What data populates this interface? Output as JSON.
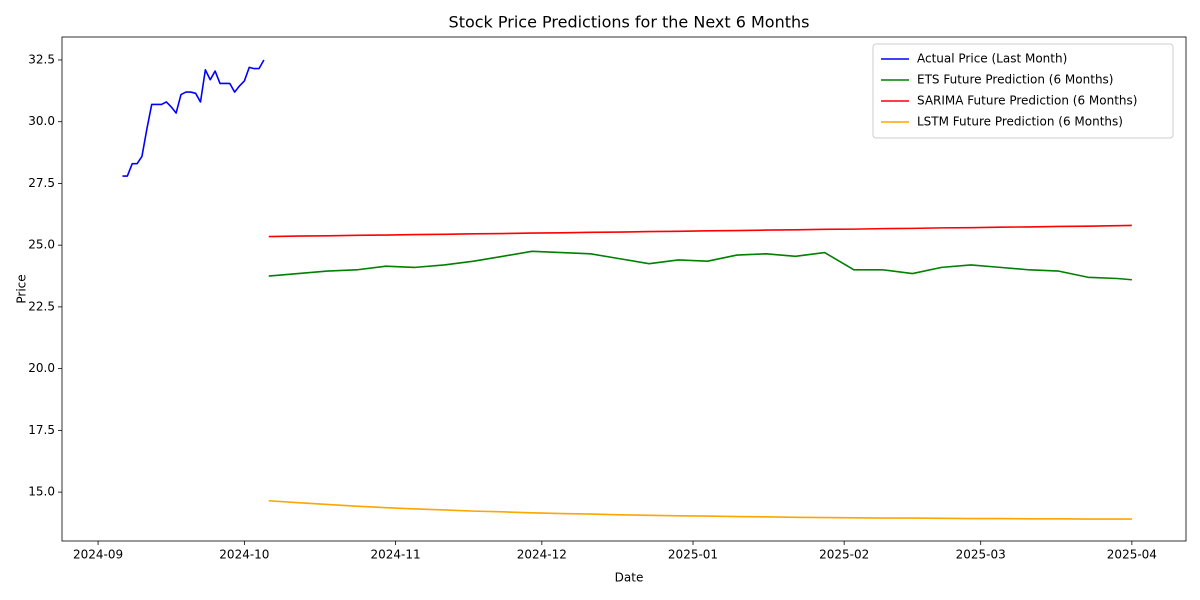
{
  "chart_data": {
    "type": "line",
    "title": "Stock Price Predictions for the Next 6 Months",
    "x_label": "Date",
    "y_label": "Price",
    "xlim": [
      19959.6,
      20190.1
    ],
    "ylim": [
      13.02,
      33.43
    ],
    "xticks": [
      {
        "value": 19967,
        "label": "2024-09"
      },
      {
        "value": 19997,
        "label": "2024-10"
      },
      {
        "value": 20028,
        "label": "2024-11"
      },
      {
        "value": 20058,
        "label": "2024-12"
      },
      {
        "value": 20089,
        "label": "2025-01"
      },
      {
        "value": 20120,
        "label": "2025-02"
      },
      {
        "value": 20148,
        "label": "2025-03"
      },
      {
        "value": 20179,
        "label": "2025-04"
      }
    ],
    "yticks": [
      {
        "value": 15,
        "label": "15.0"
      },
      17.5,
      {
        "value": 20,
        "label": "20.0"
      },
      22.5,
      {
        "value": 25,
        "label": "25.0"
      },
      27.5,
      {
        "value": 30,
        "label": "30.0"
      },
      32.5
    ],
    "grid": false,
    "legend": "upper right",
    "series": [
      {
        "name": "Actual Price (Last Month)",
        "color": "#0000ff",
        "x": [
          19972,
          19973,
          19974,
          19975,
          19976,
          19977,
          19978,
          19979,
          19980,
          19981,
          19982,
          19983,
          19984,
          19985,
          19986,
          19987,
          19988,
          19989,
          19990,
          19991,
          19992,
          19993,
          19994,
          19995,
          19996,
          19997,
          19998,
          19999,
          20000,
          20001
        ],
        "values": [
          27.8,
          27.8,
          28.3,
          28.3,
          28.6,
          29.7,
          30.7,
          30.7,
          30.7,
          30.8,
          30.6,
          30.35,
          31.1,
          31.2,
          31.2,
          31.15,
          30.8,
          32.1,
          31.7,
          32.05,
          31.55,
          31.55,
          31.55,
          31.2,
          31.45,
          31.65,
          32.2,
          32.15,
          32.15,
          32.5
        ]
      },
      {
        "name": "ETS Future Prediction (6 Months)",
        "color": "#008000",
        "x": [
          20002,
          20008,
          20014,
          20020,
          20026,
          20032,
          20038,
          20044,
          20050,
          20056,
          20062,
          20068,
          20074,
          20080,
          20086,
          20092,
          20098,
          20104,
          20110,
          20116,
          20122,
          20128,
          20134,
          20140,
          20146,
          20152,
          20158,
          20164,
          20170,
          20176,
          20179
        ],
        "values": [
          23.75,
          23.85,
          23.95,
          24.0,
          24.15,
          24.1,
          24.2,
          24.35,
          24.55,
          24.75,
          24.7,
          24.65,
          24.45,
          24.25,
          24.4,
          24.35,
          24.6,
          24.65,
          24.55,
          24.7,
          24.0,
          24.0,
          23.85,
          24.1,
          24.2,
          24.1,
          24.0,
          23.95,
          23.7,
          23.65,
          23.6
        ]
      },
      {
        "name": "SARIMA Future Prediction (6 Months)",
        "color": "#ff0000",
        "x": [
          20002,
          20008,
          20014,
          20020,
          20026,
          20032,
          20038,
          20044,
          20050,
          20056,
          20062,
          20068,
          20074,
          20080,
          20086,
          20092,
          20098,
          20104,
          20110,
          20116,
          20122,
          20128,
          20134,
          20140,
          20146,
          20152,
          20158,
          20164,
          20170,
          20176,
          20179
        ],
        "values": [
          25.35,
          25.37,
          25.38,
          25.4,
          25.41,
          25.43,
          25.44,
          25.46,
          25.47,
          25.49,
          25.5,
          25.52,
          25.53,
          25.55,
          25.56,
          25.58,
          25.59,
          25.61,
          25.62,
          25.64,
          25.65,
          25.67,
          25.68,
          25.7,
          25.71,
          25.73,
          25.74,
          25.76,
          25.77,
          25.79,
          25.8
        ]
      },
      {
        "name": "LSTM Future Prediction (6 Months)",
        "color": "#ffa500",
        "x": [
          20002,
          20008,
          20014,
          20020,
          20026,
          20032,
          20038,
          20044,
          20050,
          20056,
          20062,
          20068,
          20074,
          20080,
          20086,
          20092,
          20098,
          20104,
          20110,
          20116,
          20122,
          20128,
          20134,
          20140,
          20146,
          20152,
          20158,
          20164,
          20170,
          20176,
          20179
        ],
        "values": [
          14.65,
          14.57,
          14.5,
          14.43,
          14.37,
          14.32,
          14.28,
          14.23,
          14.2,
          14.16,
          14.13,
          14.11,
          14.08,
          14.06,
          14.04,
          14.03,
          14.01,
          14.0,
          13.98,
          13.97,
          13.96,
          13.95,
          13.95,
          13.94,
          13.93,
          13.93,
          13.92,
          13.92,
          13.91,
          13.91,
          13.91
        ]
      }
    ]
  }
}
